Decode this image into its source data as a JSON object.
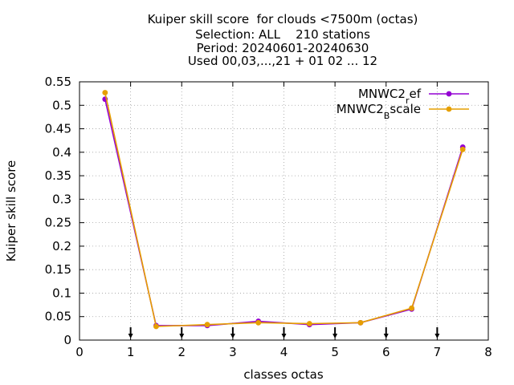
{
  "chart_data": {
    "type": "line",
    "title_lines": [
      "Kuiper skill score  for clouds <7500m (octas)",
      "Selection: ALL    210 stations",
      "Period: 20240601-20240630",
      "Used 00,03,...,21 + 01 02 ... 12"
    ],
    "xlabel": "classes octas",
    "ylabel": "Kuiper skill score",
    "xlim": [
      0,
      8
    ],
    "ylim": [
      0,
      0.55
    ],
    "x_ticks": [
      0,
      1,
      2,
      3,
      4,
      5,
      6,
      7,
      8
    ],
    "y_ticks": [
      0,
      0.05,
      0.1,
      0.15,
      0.2,
      0.25,
      0.3,
      0.35,
      0.4,
      0.45,
      0.5,
      0.55
    ],
    "x_tick_labels": [
      "0",
      "1",
      "2",
      "3",
      "4",
      "5",
      "6",
      "7",
      "8"
    ],
    "y_tick_labels": [
      "0",
      "0.05",
      "0.1",
      "0.15",
      "0.2",
      "0.25",
      "0.3",
      "0.35",
      "0.4",
      "0.45",
      "0.5",
      "0.55"
    ],
    "grid": true,
    "legend_position": "top-right",
    "class_markers_x": [
      1,
      2,
      3,
      4,
      5,
      6,
      7
    ],
    "series": [
      {
        "name_base": "MNWC2",
        "name_sub": "r",
        "name_tail": "ef",
        "color": "#9400d3",
        "x": [
          0.5,
          1.5,
          2.5,
          3.5,
          4.5,
          5.5,
          6.5,
          7.5
        ],
        "values": [
          0.513,
          0.031,
          0.031,
          0.04,
          0.033,
          0.037,
          0.066,
          0.411
        ]
      },
      {
        "name_base": "MNWC2",
        "name_sub": "B",
        "name_tail": "scale",
        "color": "#e69f00",
        "x": [
          0.5,
          1.5,
          2.5,
          3.5,
          4.5,
          5.5,
          6.5,
          7.5
        ],
        "values": [
          0.527,
          0.029,
          0.033,
          0.037,
          0.035,
          0.037,
          0.068,
          0.406
        ]
      }
    ]
  }
}
